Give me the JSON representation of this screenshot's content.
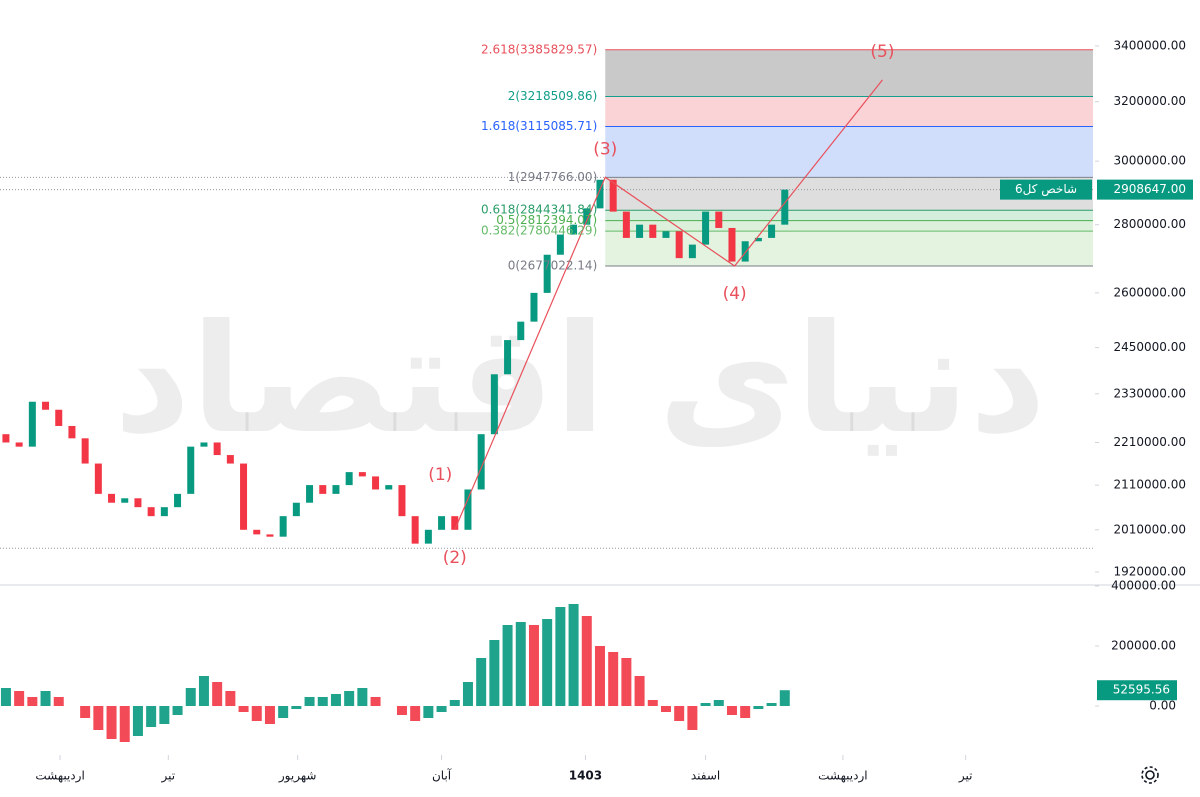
{
  "chart_data": {
    "type": "candlestick",
    "index_name": "شاخص کل6",
    "watermark": "دنیای اقتصاد",
    "log_scale": true,
    "ylim": [
      1893000,
      3574000
    ],
    "yticks": [
      {
        "value": 1920000,
        "label": "1920000.00"
      },
      {
        "value": 2010000,
        "label": "2010000.00"
      },
      {
        "value": 2110000,
        "label": "2110000.00"
      },
      {
        "value": 2210000,
        "label": "2210000.00"
      },
      {
        "value": 2330000,
        "label": "2330000.00"
      },
      {
        "value": 2450000,
        "label": "2450000.00"
      },
      {
        "value": 2600000,
        "label": "2600000.00"
      },
      {
        "value": 2800000,
        "label": "2800000.00"
      },
      {
        "value": 3000000,
        "label": "3000000.00"
      },
      {
        "value": 3200000,
        "label": "3200000.00"
      },
      {
        "value": 3400000,
        "label": "3400000.00"
      }
    ],
    "xlim": [
      -0.45,
      82.5
    ],
    "xticks": [
      {
        "value": 4.1,
        "label": "اردیبهشت"
      },
      {
        "value": 12.3,
        "label": "تیر"
      },
      {
        "value": 22.1,
        "label": "شهریور"
      },
      {
        "value": 33,
        "label": "آبان"
      },
      {
        "value": 43.9,
        "label": "1403"
      },
      {
        "value": 53,
        "label": "اسفند"
      },
      {
        "value": 63.4,
        "label": "اردیبهشت"
      },
      {
        "value": 72.7,
        "label": "تیر"
      }
    ],
    "up_color": "#089981",
    "down_color": "#f23645",
    "candles": [
      [
        2230000,
        2210000
      ],
      [
        2210000,
        2200000
      ],
      [
        2200000,
        2310000
      ],
      [
        2310000,
        2290000
      ],
      [
        2290000,
        2250000
      ],
      [
        2250000,
        2220000
      ],
      [
        2220000,
        2160000
      ],
      [
        2160000,
        2090000
      ],
      [
        2090000,
        2070000
      ],
      [
        2070000,
        2080000
      ],
      [
        2080000,
        2060000
      ],
      [
        2060000,
        2040000
      ],
      [
        2040000,
        2060000
      ],
      [
        2060000,
        2090000
      ],
      [
        2090000,
        2200000
      ],
      [
        2200000,
        2210000
      ],
      [
        2210000,
        2180000
      ],
      [
        2180000,
        2160000
      ],
      [
        2160000,
        2010000
      ],
      [
        2010000,
        2000000
      ],
      [
        2000000,
        1995000
      ],
      [
        1995000,
        2040000
      ],
      [
        2040000,
        2070000
      ],
      [
        2070000,
        2110000
      ],
      [
        2110000,
        2090000
      ],
      [
        2090000,
        2110000
      ],
      [
        2110000,
        2140000
      ],
      [
        2140000,
        2130000
      ],
      [
        2130000,
        2100000
      ],
      [
        2100000,
        2110000
      ],
      [
        2110000,
        2040000
      ],
      [
        2040000,
        1980000
      ],
      [
        1980000,
        2010000
      ],
      [
        2010000,
        2040000
      ],
      [
        2040000,
        2010000
      ],
      [
        2010000,
        2100000
      ],
      [
        2100000,
        2230000
      ],
      [
        2230000,
        2380000
      ],
      [
        2380000,
        2470000
      ],
      [
        2470000,
        2520000
      ],
      [
        2520000,
        2600000
      ],
      [
        2600000,
        2710000
      ],
      [
        2710000,
        2770000
      ],
      [
        2770000,
        2800000
      ],
      [
        2800000,
        2850000
      ],
      [
        2850000,
        2940000
      ],
      [
        2940000,
        2840000
      ],
      [
        2840000,
        2760000
      ],
      [
        2760000,
        2800000
      ],
      [
        2800000,
        2760000
      ],
      [
        2760000,
        2780000
      ],
      [
        2780000,
        2700000
      ],
      [
        2700000,
        2740000
      ],
      [
        2740000,
        2840000
      ],
      [
        2840000,
        2790000
      ],
      [
        2790000,
        2690000
      ],
      [
        2690000,
        2750000
      ],
      [
        2750000,
        2760000
      ],
      [
        2760000,
        2800000
      ],
      [
        2800000,
        2908647
      ]
    ],
    "last_label": "2908647.00",
    "dotted_levels": [
      2947766,
      2908647,
      1970000
    ],
    "fib_levels": [
      {
        "label": "2.618(3385829.57)",
        "value": 3385829.57,
        "color": "#e8505b",
        "band": "#c9c9c9"
      },
      {
        "label": "2(3218509.86)",
        "value": 3218509.86,
        "color": "#119e8a",
        "band": "#f9d3d6"
      },
      {
        "label": "1.618(3115085.71)",
        "value": 3115085.71,
        "color": "#2962ff",
        "band": "#d0defc"
      },
      {
        "label": "1(2947766.00)",
        "value": 2947766.0,
        "color": "#787b86",
        "band": "#dedede"
      },
      {
        "label": "0.618(2844341.84)",
        "value": 2844341.84,
        "color": "#2a9d6a",
        "band": "#d4eddc"
      },
      {
        "label": "0.5(2812394.07)",
        "value": 2812394.07,
        "color": "#4caf50",
        "band": "#dcf0dc"
      },
      {
        "label": "0.382(2780446.29)",
        "value": 2780446.29,
        "color": "#66bb6a",
        "band": "#e3f3df"
      },
      {
        "label": "0(2677022.14)",
        "value": 2677022.14,
        "color": "#787b86"
      }
    ],
    "waves": [
      {
        "label": "(1)",
        "x": 32.9,
        "price": 2069000,
        "position": "above"
      },
      {
        "label": "(2)",
        "x": 34,
        "price": 2010000,
        "position": "below"
      },
      {
        "label": "(3)",
        "x": 45.4,
        "price": 2947766,
        "position": "above"
      },
      {
        "label": "(4)",
        "x": 55.2,
        "price": 2677022.14,
        "position": "below"
      },
      {
        "label": "(5)",
        "x": 66.4,
        "price": 3277000,
        "position": "above"
      }
    ],
    "wave_color": "#e8505b",
    "oscillator": {
      "ylim": [
        -160000,
        400000
      ],
      "yticks": [
        {
          "value": 400000,
          "label": "400000.00"
        },
        {
          "value": 200000,
          "label": "200000.00"
        },
        {
          "value": 0,
          "label": "0.00"
        }
      ],
      "values": [
        60000,
        50000,
        30000,
        50000,
        30000,
        0,
        -40000,
        -80000,
        -110000,
        -120000,
        -100000,
        -70000,
        -60000,
        -30000,
        60000,
        100000,
        80000,
        50000,
        -20000,
        -50000,
        -60000,
        -40000,
        -10000,
        30000,
        30000,
        40000,
        50000,
        60000,
        30000,
        0,
        -30000,
        -50000,
        -40000,
        -20000,
        20000,
        80000,
        160000,
        220000,
        270000,
        280000,
        270000,
        290000,
        330000,
        340000,
        300000,
        200000,
        180000,
        160000,
        100000,
        20000,
        -20000,
        -50000,
        -80000,
        10000,
        20000,
        -30000,
        -40000,
        -10000,
        10000,
        52595.56
      ]
    }
  }
}
